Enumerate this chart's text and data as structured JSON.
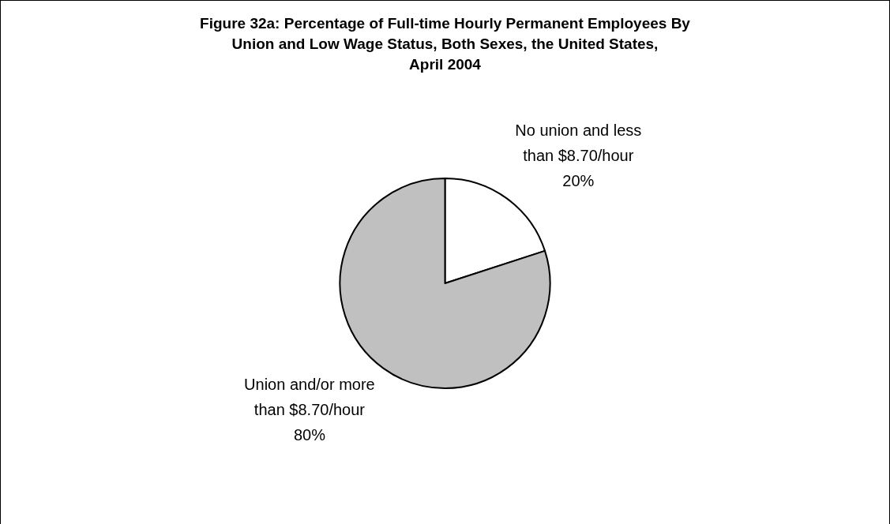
{
  "chart_data": {
    "type": "pie",
    "title": "Figure 32a: Percentage of Full-time Hourly Permanent Employees By\nUnion and Low Wage Status, Both Sexes, the United States,\nApril 2004",
    "categories": [
      "No union and less than $8.70/hour",
      "Union and/or more than $8.70/hour"
    ],
    "values": [
      20,
      80
    ],
    "colors": [
      "#ffffff",
      "#c0c0c0"
    ],
    "value_labels": [
      "20%",
      "80%"
    ]
  }
}
